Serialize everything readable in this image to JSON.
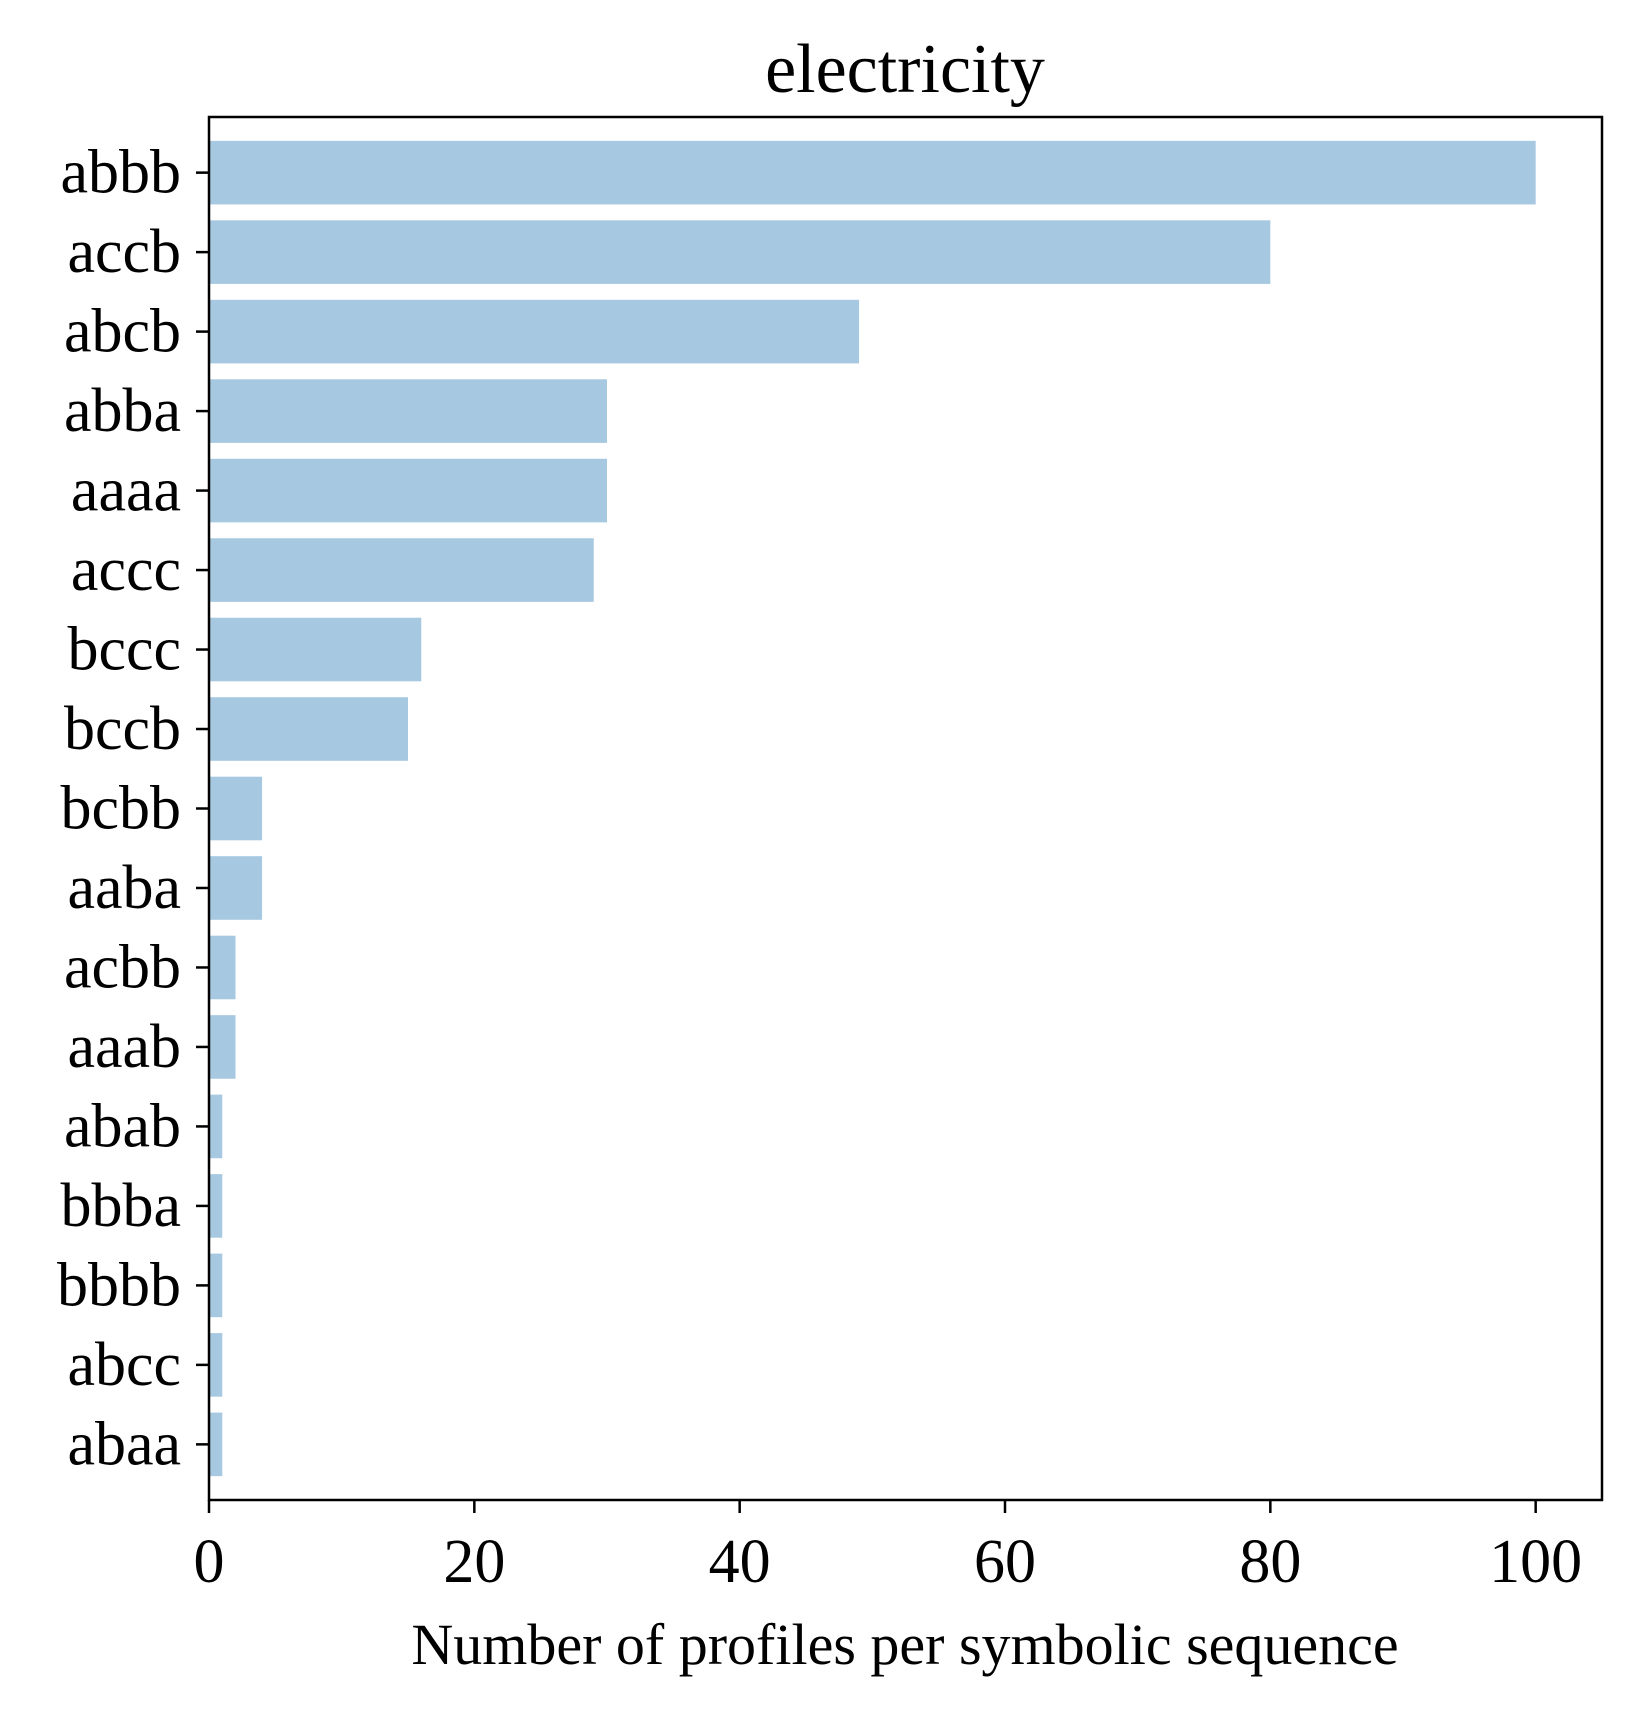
{
  "chart_data": {
    "type": "bar",
    "orientation": "horizontal",
    "title": "electricity",
    "xlabel": "Number of profiles per symbolic sequence",
    "ylabel": "",
    "categories": [
      "abbb",
      "accb",
      "abcb",
      "abba",
      "aaaa",
      "accc",
      "bccc",
      "bccb",
      "bcbb",
      "aaba",
      "acbb",
      "aaab",
      "abab",
      "bbba",
      "bbbb",
      "abcc",
      "abaa"
    ],
    "values": [
      100,
      80,
      49,
      30,
      30,
      29,
      16,
      15,
      4,
      4,
      2,
      2,
      1,
      1,
      1,
      1,
      1
    ],
    "xlim": [
      0,
      105
    ],
    "xticks": [
      0,
      20,
      40,
      60,
      80,
      100
    ],
    "xtick_labels": [
      "0",
      "20",
      "40",
      "60",
      "80",
      "100"
    ],
    "grid": false,
    "legend": "none",
    "bar_color": "#a6c8e0"
  }
}
